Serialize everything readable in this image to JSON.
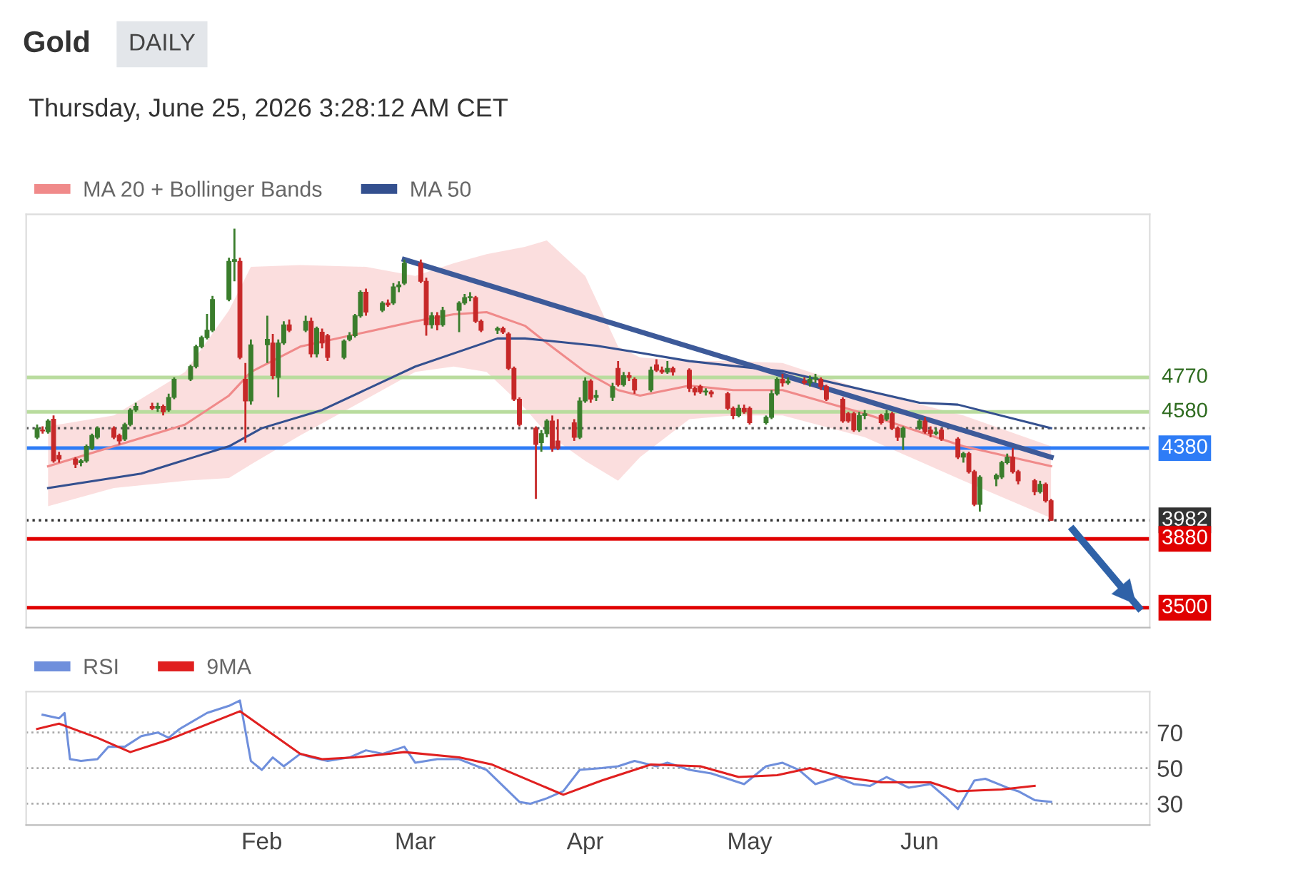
{
  "chart_data": [
    {
      "type": "candlestick",
      "title": "Gold",
      "subtitle": "DAILY",
      "annotations": [
        "Thursday, June 25, 2026 3:28:12 AM CET"
      ],
      "x": [
        "2025-12-22",
        "2025-12-23",
        "2025-12-24",
        "2025-12-25",
        "2025-12-26",
        "2025-12-29",
        "2025-12-30",
        "2025-12-31",
        "2026-01-01",
        "2026-01-02",
        "2026-01-05",
        "2026-01-06",
        "2026-01-07",
        "2026-01-08",
        "2026-01-09",
        "2026-01-12",
        "2026-01-13",
        "2026-01-14",
        "2026-01-15",
        "2026-01-16",
        "2026-01-19",
        "2026-01-20",
        "2026-01-21",
        "2026-01-22",
        "2026-01-23",
        "2026-01-26",
        "2026-01-27",
        "2026-01-28",
        "2026-01-29",
        "2026-01-30",
        "2026-02-02",
        "2026-02-03",
        "2026-02-04",
        "2026-02-05",
        "2026-02-06",
        "2026-02-09",
        "2026-02-10",
        "2026-02-11",
        "2026-02-12",
        "2026-02-13",
        "2026-02-16",
        "2026-02-17",
        "2026-02-18",
        "2026-02-19",
        "2026-02-20",
        "2026-02-23",
        "2026-02-24",
        "2026-02-25",
        "2026-02-26",
        "2026-02-27",
        "2026-03-02",
        "2026-03-03",
        "2026-03-04",
        "2026-03-05",
        "2026-03-06",
        "2026-03-09",
        "2026-03-10",
        "2026-03-11",
        "2026-03-12",
        "2026-03-13",
        "2026-03-16",
        "2026-03-17",
        "2026-03-18",
        "2026-03-19",
        "2026-03-20",
        "2026-03-23",
        "2026-03-24",
        "2026-03-25",
        "2026-03-26",
        "2026-03-27",
        "2026-03-30",
        "2026-03-31",
        "2026-04-01",
        "2026-04-02",
        "2026-04-03",
        "2026-04-06",
        "2026-04-07",
        "2026-04-08",
        "2026-04-09",
        "2026-04-10",
        "2026-04-13",
        "2026-04-14",
        "2026-04-15",
        "2026-04-16",
        "2026-04-17",
        "2026-04-20",
        "2026-04-21",
        "2026-04-22",
        "2026-04-23",
        "2026-04-24",
        "2026-04-27",
        "2026-04-28",
        "2026-04-29",
        "2026-04-30",
        "2026-05-01",
        "2026-05-04",
        "2026-05-05",
        "2026-05-06",
        "2026-05-07",
        "2026-05-08",
        "2026-05-11",
        "2026-05-12",
        "2026-05-13",
        "2026-05-14",
        "2026-05-15",
        "2026-05-18",
        "2026-05-19",
        "2026-05-20",
        "2026-05-21",
        "2026-05-22",
        "2026-05-25",
        "2026-05-26",
        "2026-05-27",
        "2026-05-28",
        "2026-05-29",
        "2026-06-01",
        "2026-06-02",
        "2026-06-03",
        "2026-06-04",
        "2026-06-05",
        "2026-06-08",
        "2026-06-09",
        "2026-06-10",
        "2026-06-11",
        "2026-06-12",
        "2026-06-15",
        "2026-06-16",
        "2026-06-17",
        "2026-06-18",
        "2026-06-19",
        "2026-06-22",
        "2026-06-23",
        "2026-06-24",
        "2026-06-25"
      ],
      "ohlc": [
        [
          4440,
          4510,
          4430,
          4490
        ],
        [
          4480,
          4500,
          4460,
          4475
        ],
        [
          4470,
          4540,
          4460,
          4530
        ],
        [
          4540,
          4560,
          4300,
          4310
        ],
        [
          4340,
          4360,
          4300,
          4320
        ],
        [
          4320,
          4330,
          4270,
          4290
        ],
        [
          4300,
          4320,
          4280,
          4310
        ],
        [
          4310,
          4400,
          4300,
          4390
        ],
        [
          4380,
          4460,
          4370,
          4450
        ],
        [
          4440,
          4500,
          4430,
          4490
        ],
        [
          4490,
          4500,
          4430,
          4440
        ],
        [
          4450,
          4460,
          4400,
          4420
        ],
        [
          4430,
          4520,
          4420,
          4510
        ],
        [
          4510,
          4600,
          4500,
          4590
        ],
        [
          4590,
          4630,
          4580,
          4610
        ],
        [
          4610,
          4630,
          4590,
          4600
        ],
        [
          4600,
          4630,
          4580,
          4610
        ],
        [
          4610,
          4620,
          4560,
          4580
        ],
        [
          4590,
          4680,
          4580,
          4660
        ],
        [
          4660,
          4770,
          4650,
          4760
        ],
        [
          4760,
          4840,
          4750,
          4830
        ],
        [
          4830,
          4950,
          4820,
          4940
        ],
        [
          4940,
          5000,
          4930,
          4990
        ],
        [
          4990,
          5120,
          4980,
          5030
        ],
        [
          5030,
          5220,
          5020,
          5200
        ],
        [
          5200,
          5430,
          5190,
          5410
        ],
        [
          5410,
          5590,
          5300,
          5420
        ],
        [
          5410,
          5430,
          4870,
          4880
        ],
        [
          4760,
          4850,
          4410,
          4640
        ],
        [
          4640,
          4980,
          4620,
          4950
        ],
        [
          4950,
          5110,
          4850,
          4980
        ],
        [
          4960,
          5010,
          4760,
          4780
        ],
        [
          4770,
          4980,
          4660,
          4960
        ],
        [
          4960,
          5080,
          4950,
          5060
        ],
        [
          5060,
          5090,
          5020,
          5030
        ],
        [
          5030,
          5110,
          5020,
          5080
        ],
        [
          5080,
          5100,
          4880,
          4900
        ],
        [
          4900,
          5050,
          4880,
          5040
        ],
        [
          5020,
          5040,
          4930,
          4960
        ],
        [
          5000,
          5010,
          4860,
          4880
        ],
        [
          4880,
          4980,
          4870,
          4970
        ],
        [
          4980,
          5020,
          4970,
          5000
        ],
        [
          5000,
          5120,
          4990,
          5110
        ],
        [
          5110,
          5250,
          5100,
          5240
        ],
        [
          5240,
          5260,
          5110,
          5130
        ],
        [
          5140,
          5190,
          5130,
          5180
        ],
        [
          5180,
          5200,
          5160,
          5170
        ],
        [
          5180,
          5290,
          5170,
          5270
        ],
        [
          5270,
          5300,
          5240,
          5280
        ],
        [
          5290,
          5420,
          5280,
          5400
        ],
        [
          5400,
          5420,
          5290,
          5300
        ],
        [
          5300,
          5320,
          5000,
          5060
        ],
        [
          5060,
          5130,
          5040,
          5110
        ],
        [
          5110,
          5130,
          5030,
          5060
        ],
        [
          5060,
          5160,
          5050,
          5140
        ],
        [
          5140,
          5190,
          5020,
          5180
        ],
        [
          5180,
          5230,
          5170,
          5210
        ],
        [
          5210,
          5240,
          5190,
          5215
        ],
        [
          5210,
          5220,
          5070,
          5080
        ],
        [
          5080,
          5090,
          5020,
          5030
        ],
        [
          5030,
          5050,
          5010,
          5040
        ],
        [
          5040,
          5050,
          5010,
          5020
        ],
        [
          5010,
          5020,
          4810,
          4820
        ],
        [
          4820,
          4830,
          4640,
          4650
        ],
        [
          4650,
          4660,
          4500,
          4510
        ],
        [
          4490,
          4500,
          4100,
          4400
        ],
        [
          4410,
          4480,
          4360,
          4460
        ],
        [
          4460,
          4540,
          4440,
          4530
        ],
        [
          4530,
          4560,
          4360,
          4380
        ],
        [
          4420,
          4540,
          4370,
          4380
        ],
        [
          4520,
          4540,
          4420,
          4440
        ],
        [
          4440,
          4660,
          4430,
          4640
        ],
        [
          4640,
          4770,
          4630,
          4750
        ],
        [
          4750,
          4760,
          4630,
          4650
        ],
        [
          4660,
          4700,
          4640,
          4670
        ],
        [
          4660,
          4740,
          4640,
          4720
        ],
        [
          4820,
          4860,
          4720,
          4730
        ],
        [
          4730,
          4800,
          4720,
          4780
        ],
        [
          4780,
          4800,
          4750,
          4770
        ],
        [
          4760,
          4770,
          4680,
          4700
        ],
        [
          4700,
          4830,
          4690,
          4810
        ],
        [
          4840,
          4870,
          4800,
          4810
        ],
        [
          4810,
          4830,
          4790,
          4800
        ],
        [
          4800,
          4860,
          4790,
          4820
        ],
        [
          4820,
          4830,
          4780,
          4800
        ],
        [
          4810,
          4820,
          4690,
          4710
        ],
        [
          4710,
          4720,
          4670,
          4690
        ],
        [
          4720,
          4730,
          4680,
          4690
        ],
        [
          4690,
          4710,
          4670,
          4695
        ],
        [
          4690,
          4700,
          4660,
          4680
        ],
        [
          4680,
          4690,
          4590,
          4600
        ],
        [
          4600,
          4610,
          4540,
          4560
        ],
        [
          4560,
          4620,
          4550,
          4600
        ],
        [
          4600,
          4620,
          4570,
          4580
        ],
        [
          4600,
          4610,
          4510,
          4520
        ],
        [
          4520,
          4560,
          4510,
          4550
        ],
        [
          4550,
          4700,
          4540,
          4680
        ],
        [
          4680,
          4770,
          4670,
          4760
        ],
        [
          4760,
          4790,
          4720,
          4740
        ],
        [
          4740,
          4770,
          4730,
          4750
        ],
        [
          4750,
          4770,
          4730,
          4740
        ],
        [
          4740,
          4780,
          4720,
          4760
        ],
        [
          4760,
          4790,
          4740,
          4770
        ],
        [
          4760,
          4770,
          4700,
          4720
        ],
        [
          4720,
          4730,
          4640,
          4650
        ],
        [
          4650,
          4660,
          4520,
          4530
        ],
        [
          4570,
          4580,
          4520,
          4530
        ],
        [
          4570,
          4580,
          4470,
          4480
        ],
        [
          4480,
          4580,
          4470,
          4560
        ],
        [
          4560,
          4590,
          4540,
          4570
        ],
        [
          4560,
          4570,
          4510,
          4520
        ],
        [
          4540,
          4590,
          4530,
          4570
        ],
        [
          4570,
          4580,
          4480,
          4490
        ],
        [
          4490,
          4500,
          4420,
          4440
        ],
        [
          4440,
          4500,
          4370,
          4490
        ],
        [
          4490,
          4540,
          4480,
          4530
        ],
        [
          4530,
          4550,
          4460,
          4470
        ],
        [
          4480,
          4500,
          4440,
          4460
        ],
        [
          4460,
          4490,
          4450,
          4470
        ],
        [
          4480,
          4490,
          4420,
          4430
        ],
        [
          4430,
          4440,
          4320,
          4330
        ],
        [
          4330,
          4360,
          4300,
          4350
        ],
        [
          4350,
          4360,
          4240,
          4250
        ],
        [
          4250,
          4260,
          4060,
          4070
        ],
        [
          4070,
          4230,
          4030,
          4220
        ],
        [
          4210,
          4240,
          4170,
          4230
        ],
        [
          4220,
          4310,
          4210,
          4300
        ],
        [
          4300,
          4350,
          4290,
          4330
        ],
        [
          4330,
          4380,
          4240,
          4250
        ],
        [
          4250,
          4260,
          4180,
          4200
        ],
        [
          4200,
          4210,
          4120,
          4140
        ],
        [
          4140,
          4200,
          4130,
          4180
        ],
        [
          4180,
          4190,
          4080,
          4090
        ],
        [
          4090,
          4100,
          3980,
          3982
        ]
      ],
      "series": [
        {
          "type": "line",
          "name": "MA 20 + Bollinger Bands",
          "color": "#f08a8a",
          "x": [
            "2025-12-24",
            "2026-01-05",
            "2026-01-18",
            "2026-01-26",
            "2026-01-30",
            "2026-02-08",
            "2026-02-20",
            "2026-03-01",
            "2026-03-08",
            "2026-03-14",
            "2026-03-21",
            "2026-03-25",
            "2026-04-01",
            "2026-04-07",
            "2026-04-11",
            "2026-04-20",
            "2026-04-28",
            "2026-05-07",
            "2026-05-22",
            "2026-06-09",
            "2026-06-25"
          ],
          "values": [
            4280,
            4390,
            4510,
            4670,
            4800,
            4940,
            5020,
            5080,
            5118,
            5130,
            5055,
            4960,
            4800,
            4700,
            4670,
            4725,
            4700,
            4700,
            4570,
            4390,
            4280
          ],
          "upper": [
            4500,
            4560,
            4800,
            5140,
            5380,
            5390,
            5380,
            5330,
            5400,
            5450,
            5490,
            5526,
            5330,
            4940,
            4880,
            4860,
            4860,
            4850,
            4700,
            4560,
            4390
          ],
          "lower": [
            4060,
            4160,
            4200,
            4215,
            4290,
            4450,
            4650,
            4800,
            4830,
            4800,
            4600,
            4460,
            4310,
            4200,
            4330,
            4540,
            4560,
            4560,
            4440,
            4200,
            3995
          ]
        },
        {
          "type": "line",
          "name": "MA 50",
          "color": "#34508f",
          "x": [
            "2025-12-24",
            "2026-01-10",
            "2026-01-26",
            "2026-02-01",
            "2026-02-12",
            "2026-03-01",
            "2026-03-16",
            "2026-03-21",
            "2026-04-03",
            "2026-04-11",
            "2026-04-20",
            "2026-05-07",
            "2026-06-01",
            "2026-06-08",
            "2026-06-25"
          ],
          "values": [
            4160,
            4240,
            4390,
            4490,
            4590,
            4830,
            4985,
            4985,
            4945,
            4906,
            4860,
            4804,
            4630,
            4620,
            4490
          ]
        },
        {
          "type": "line",
          "color": "#3d5a99",
          "x": [
            "2026-02-27",
            "2026-06-25"
          ],
          "values": [
            5420,
            4330
          ]
        },
        {
          "type": "line",
          "color": "#2f62a8",
          "x": [
            "2026-06-29",
            "2026-07-11"
          ],
          "values": [
            3930,
            3500
          ]
        }
      ],
      "ref_lines": [
        {
          "axis": "y",
          "value": 4770,
          "label": "4770",
          "color": "#b9dc9e"
        },
        {
          "axis": "y",
          "value": 4580,
          "label": "4580",
          "color": "#b9dc9e"
        },
        {
          "axis": "y",
          "value": 4490,
          "color": "#555555",
          "line_style": "dotted"
        },
        {
          "axis": "y",
          "value": 4380,
          "label": "4380",
          "color": "#2e7cf6"
        },
        {
          "axis": "y",
          "value": 3982,
          "label": "3982",
          "color": "#333333",
          "line_style": "dotted"
        },
        {
          "axis": "y",
          "value": 3880,
          "label": "3880",
          "color": "#e00000"
        },
        {
          "axis": "y",
          "value": 3500,
          "label": "3500",
          "color": "#e00000"
        }
      ],
      "xlim": [
        "2025-12-20",
        "2026-07-13"
      ],
      "ylim": [
        3390,
        5670
      ],
      "tick_labels": false,
      "legend": "top left",
      "grid": false
    },
    {
      "type": "line",
      "series": [
        {
          "name": "RSI",
          "color": "#6f8fdc",
          "x": [
            "2025-12-23",
            "2025-12-26",
            "2025-12-27",
            "2025-12-28",
            "2025-12-30",
            "2026-01-02",
            "2026-01-04",
            "2026-01-07",
            "2026-01-10",
            "2026-01-13",
            "2026-01-15",
            "2026-01-17",
            "2026-01-22",
            "2026-01-26",
            "2026-01-28",
            "2026-01-30",
            "2026-02-01",
            "2026-02-03",
            "2026-02-05",
            "2026-02-08",
            "2026-02-10",
            "2026-02-13",
            "2026-02-17",
            "2026-02-20",
            "2026-02-23",
            "2026-02-27",
            "2026-03-01",
            "2026-03-05",
            "2026-03-09",
            "2026-03-14",
            "2026-03-20",
            "2026-03-22",
            "2026-03-25",
            "2026-03-28",
            "2026-03-31",
            "2026-04-04",
            "2026-04-07",
            "2026-04-10",
            "2026-04-14",
            "2026-04-16",
            "2026-04-20",
            "2026-04-24",
            "2026-04-28",
            "2026-04-30",
            "2026-05-04",
            "2026-05-07",
            "2026-05-10",
            "2026-05-13",
            "2026-05-17",
            "2026-05-20",
            "2026-05-23",
            "2026-05-26",
            "2026-05-30",
            "2026-06-03",
            "2026-06-06",
            "2026-06-08",
            "2026-06-11",
            "2026-06-13",
            "2026-06-17",
            "2026-06-19",
            "2026-06-22",
            "2026-06-25"
          ],
          "values": [
            80,
            78,
            81,
            55,
            54,
            55,
            62,
            62,
            68,
            70,
            67,
            72,
            81,
            85,
            88,
            54,
            49,
            56,
            51,
            58,
            56,
            54,
            56,
            60,
            58,
            62,
            53,
            55,
            55,
            49,
            31,
            30,
            33,
            37,
            49,
            50,
            51,
            54,
            51,
            53,
            49,
            47,
            43,
            41,
            51,
            53,
            49,
            41,
            45,
            41,
            40,
            45,
            39,
            41,
            33,
            27,
            43,
            44,
            39,
            37,
            32,
            31
          ]
        },
        {
          "name": "9MA",
          "color": "#e02020",
          "x": [
            "2025-12-22",
            "2025-12-26",
            "2026-01-02",
            "2026-01-08",
            "2026-01-15",
            "2026-01-28",
            "2026-02-08",
            "2026-02-12",
            "2026-02-18",
            "2026-02-27",
            "2026-03-09",
            "2026-03-15",
            "2026-03-28",
            "2026-04-04",
            "2026-04-13",
            "2026-04-22",
            "2026-04-29",
            "2026-05-06",
            "2026-05-12",
            "2026-05-18",
            "2026-05-25",
            "2026-06-03",
            "2026-06-08",
            "2026-06-16",
            "2026-06-22"
          ],
          "values": [
            72,
            75,
            67,
            59,
            66,
            82,
            58,
            55,
            56,
            59,
            56,
            52,
            35,
            43,
            52,
            51,
            45,
            46,
            50,
            45,
            42,
            42,
            37,
            38,
            40
          ]
        }
      ],
      "xlim": [
        "2025-12-20",
        "2026-07-13"
      ],
      "ylim": [
        18,
        93
      ],
      "yticks": [
        30,
        50,
        70
      ],
      "xticks": [
        {
          "value": "2026-02-01",
          "label": "Feb"
        },
        {
          "value": "2026-03-01",
          "label": "Mar"
        },
        {
          "value": "2026-04-01",
          "label": "Apr"
        },
        {
          "value": "2026-05-01",
          "label": "May"
        },
        {
          "value": "2026-06-01",
          "label": "Jun"
        }
      ],
      "grid": "y",
      "legend": "top left"
    }
  ]
}
